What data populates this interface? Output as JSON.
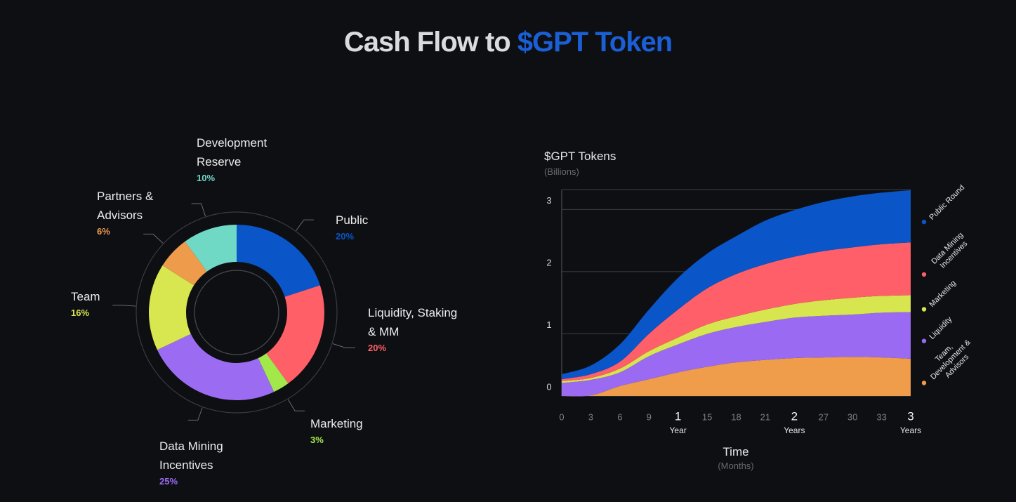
{
  "title": "Cash Flow to",
  "title_highlight": "$GPT Token",
  "chart_data": [
    {
      "type": "donut",
      "categories": [
        "Public",
        "Liquidity, Staking & MM",
        "Marketing",
        "Data Mining Incentives",
        "Team",
        "Partners & Advisors",
        "Development Reserve"
      ],
      "values": [
        20,
        20,
        3,
        25,
        16,
        6,
        10
      ],
      "value_labels": [
        "20%",
        "20%",
        "3%",
        "25%",
        "16%",
        "6%",
        "10%"
      ],
      "colors": [
        "#0a55c8",
        "#ff5f67",
        "#a3e84a",
        "#9b6cf2",
        "#d8e64f",
        "#ee9b4c",
        "#70d9c6"
      ]
    },
    {
      "type": "stacked_area",
      "y_label": "$GPT Tokens",
      "y_sublabel": "(Billions)",
      "x_label": "Time",
      "x_sublabel": "(Months)",
      "x": [
        0,
        3,
        6,
        9,
        12,
        15,
        18,
        21,
        24,
        27,
        30,
        33,
        36
      ],
      "xlim": [
        0,
        36
      ],
      "xticks": [
        0,
        3,
        6,
        9,
        {
          "value": 12,
          "label": "1",
          "sublabel": "Year"
        },
        15,
        18,
        21,
        {
          "value": 24,
          "label": "2",
          "sublabel": "Years"
        },
        27,
        30,
        33,
        {
          "value": 36,
          "label": "3",
          "sublabel": "Years"
        }
      ],
      "ylim": [
        0,
        3.32
      ],
      "yticks": [
        0,
        1,
        2,
        3
      ],
      "grid": true,
      "legend": "right",
      "series": [
        {
          "name": "Team, Development & Advisors",
          "color": "#ef9c4b",
          "values": [
            0,
            0.01,
            0.16,
            0.27,
            0.38,
            0.47,
            0.54,
            0.58,
            0.61,
            0.62,
            0.63,
            0.62,
            0.6
          ]
        },
        {
          "name": "Liquidity",
          "color": "#9a6bf2",
          "values": [
            0.21,
            0.25,
            0.22,
            0.37,
            0.45,
            0.53,
            0.57,
            0.61,
            0.65,
            0.67,
            0.68,
            0.72,
            0.75
          ]
        },
        {
          "name": "Marketing",
          "color": "#d7e54e",
          "values": [
            0.03,
            0.03,
            0.06,
            0.08,
            0.11,
            0.15,
            0.17,
            0.2,
            0.22,
            0.25,
            0.27,
            0.27,
            0.27
          ]
        },
        {
          "name": "Data Mining Incentives",
          "color": "#ff5f68",
          "values": [
            0.03,
            0.06,
            0.11,
            0.28,
            0.45,
            0.58,
            0.68,
            0.73,
            0.76,
            0.79,
            0.81,
            0.83,
            0.85
          ]
        },
        {
          "name": "Public Round",
          "color": "#0a55c8",
          "values": [
            0.08,
            0.14,
            0.28,
            0.39,
            0.51,
            0.56,
            0.61,
            0.7,
            0.75,
            0.79,
            0.82,
            0.83,
            0.84
          ]
        }
      ]
    }
  ]
}
